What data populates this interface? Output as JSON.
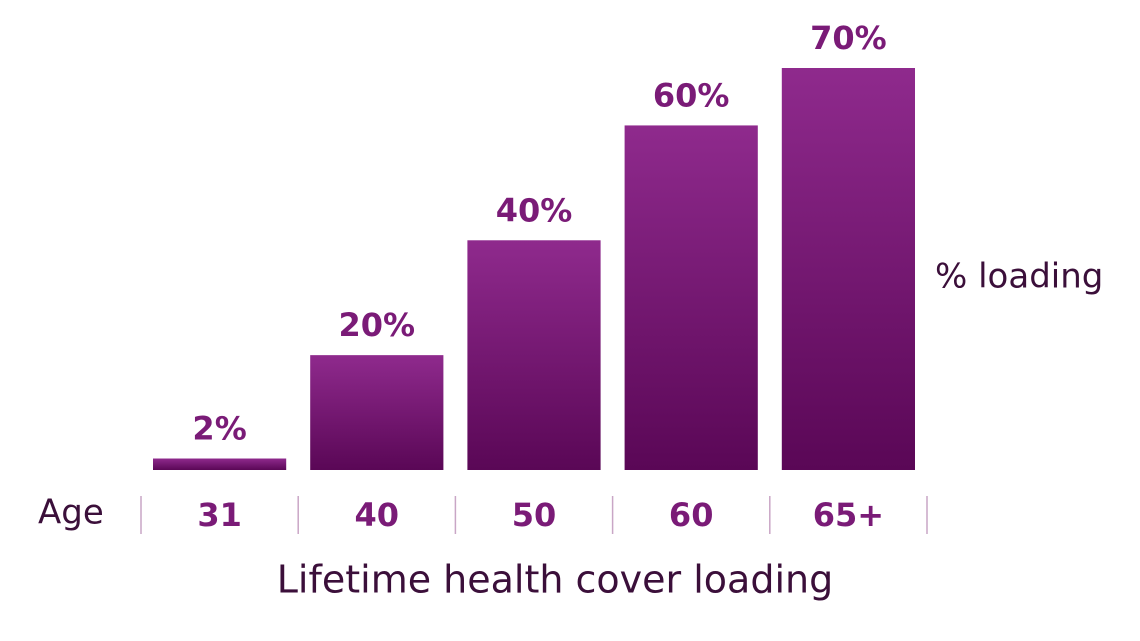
{
  "chart_data": {
    "type": "bar",
    "title": "Lifetime health cover loading",
    "x_label": "Age",
    "y_label": "% loading",
    "categories": [
      "31",
      "40",
      "50",
      "60",
      "65+"
    ],
    "values": [
      2,
      20,
      40,
      60,
      70
    ],
    "value_labels": [
      "2%",
      "20%",
      "40%",
      "60%",
      "70%"
    ],
    "gradient": [
      "#8f2a8d",
      "#5a0756"
    ]
  }
}
